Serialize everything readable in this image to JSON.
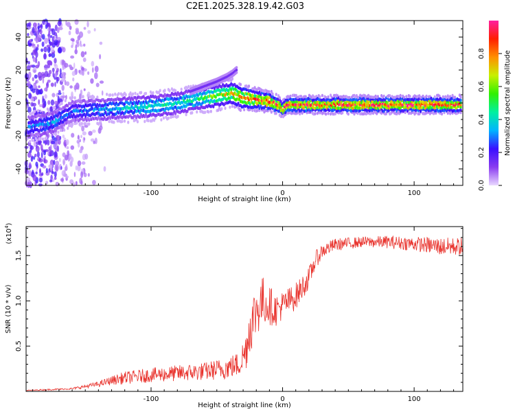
{
  "title": "C2E1.2025.328.19.42.G03",
  "chart_data": [
    {
      "type": "heatmap",
      "name": "spectrogram",
      "xlabel": "Height of straight line (km)",
      "ylabel": "Frequency (Hz)",
      "xlim": [
        -195,
        137
      ],
      "ylim": [
        -50,
        50
      ],
      "xticks": [
        -100,
        0,
        100
      ],
      "xtick_labels": [
        "-100",
        "0",
        "100"
      ],
      "yticks": [
        -40,
        -20,
        0,
        20,
        40
      ],
      "ytick_labels": [
        "-40",
        "-20",
        "0",
        "20",
        "40"
      ],
      "colorbar": {
        "label": "Normalized spectral amplitude",
        "range": [
          0,
          1
        ],
        "ticks": [
          0,
          0.2,
          0.4,
          0.6,
          0.8
        ],
        "tick_labels": [
          "0.0",
          "0.2",
          "0.4",
          "0.6",
          "0.8"
        ],
        "colors": [
          "#e9d8ff",
          "#8a3cf0",
          "#3a10ff",
          "#00b4ff",
          "#00f0a0",
          "#30f000",
          "#c8f000",
          "#ff9000",
          "#ff2000",
          "#ff20a0"
        ]
      },
      "ridge": {
        "x": [
          -195,
          -175,
          -160,
          -140,
          -120,
          -100,
          -80,
          -60,
          -45,
          -38,
          -30,
          -20,
          -10,
          -3,
          0,
          3,
          10,
          30,
          60,
          100,
          137
        ],
        "freq": [
          -15,
          -12,
          -5,
          -4,
          -3,
          -2,
          0,
          3,
          5,
          6,
          3,
          2,
          1,
          -1,
          -4,
          -1,
          -1,
          -1,
          -1,
          -1,
          -1
        ],
        "amplitude": [
          0.3,
          0.35,
          0.3,
          0.35,
          0.4,
          0.45,
          0.45,
          0.55,
          0.7,
          0.75,
          0.85,
          0.9,
          0.95,
          0.9,
          0.85,
          0.95,
          0.95,
          0.95,
          0.95,
          0.95,
          0.95
        ]
      },
      "secondary_ridge": {
        "x": [
          -70,
          -60,
          -50,
          -42,
          -38,
          -35
        ],
        "freq": [
          7,
          10,
          13,
          16,
          18,
          20
        ]
      }
    },
    {
      "type": "line",
      "name": "snr",
      "xlabel": "Height of straight line (km)",
      "ylabel": "SNR (10 * v/v)",
      "multiplier_label": "(x10",
      "multiplier_exp": "4",
      "multiplier_close": ")",
      "xlim": [
        -195,
        137
      ],
      "ylim": [
        0,
        1.82
      ],
      "xticks": [
        -100,
        0,
        100
      ],
      "xtick_labels": [
        "-100",
        "0",
        "100"
      ],
      "yticks": [
        0.5,
        1.0,
        1.5
      ],
      "ytick_labels": [
        "0.5",
        "1.0",
        "1.5"
      ],
      "line_color": "#e8302a",
      "envelope": {
        "x": [
          -195,
          -160,
          -140,
          -130,
          -120,
          -100,
          -80,
          -60,
          -45,
          -33,
          -28,
          -25,
          -20,
          -15,
          -10,
          -5,
          0,
          10,
          20,
          25,
          30,
          40,
          60,
          80,
          100,
          120,
          137
        ],
        "y": [
          0.01,
          0.03,
          0.08,
          0.12,
          0.15,
          0.18,
          0.2,
          0.22,
          0.25,
          0.3,
          0.45,
          0.7,
          0.9,
          1.0,
          0.95,
          0.9,
          0.95,
          1.05,
          1.25,
          1.45,
          1.55,
          1.62,
          1.65,
          1.65,
          1.63,
          1.6,
          1.6
        ],
        "noise": [
          0.005,
          0.01,
          0.03,
          0.05,
          0.07,
          0.08,
          0.09,
          0.1,
          0.12,
          0.14,
          0.22,
          0.3,
          0.3,
          0.28,
          0.22,
          0.18,
          0.16,
          0.15,
          0.12,
          0.1,
          0.08,
          0.07,
          0.06,
          0.07,
          0.08,
          0.1,
          0.1
        ]
      }
    }
  ]
}
